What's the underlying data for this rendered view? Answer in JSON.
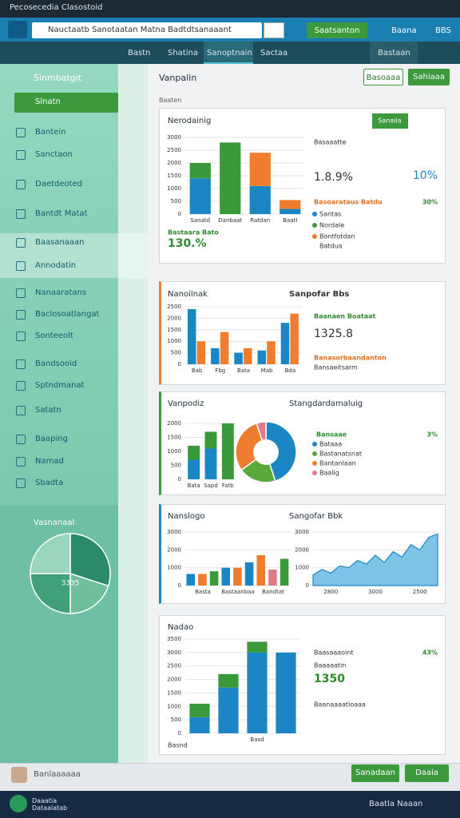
{
  "window_title": "Pecosecedia Clasostoid",
  "toolbar": {
    "search": "Nauctaatb Sanotaatan Matna Badtdtsanaaant",
    "action": "Saatsanton",
    "user": "Baana",
    "badge": "BBS"
  },
  "tabs": [
    "Bastn",
    "Shatina",
    "Sanoptnain",
    "Sactaa"
  ],
  "tab_right": "Bastaan",
  "sidebar": {
    "header": "Sinmbatgit",
    "active": "Slnatn",
    "items": [
      "Bantein",
      "Sanctaon",
      "Daetdeoted",
      "Bantdt Matat",
      "Baasanaaan",
      "Annodatin",
      "Nanaaratans",
      "Baclosoatlangat",
      "Sonteeolt",
      "Bandsooid",
      "Sptndmanat",
      "Satatn",
      "Baaping",
      "Namad",
      "Sbadta"
    ]
  },
  "page": {
    "title": "Vanpalin",
    "button_1": "Basoaaa",
    "button_2": "Sahiaaa",
    "section": "Baaten"
  },
  "panels": [
    {
      "texts": [
        "Sanaiia",
        "Basaaatte",
        "1.8.9%",
        "10%",
        "Basoarataus Batdu",
        "30%",
        "Bastaara Bato",
        "130.%",
        "Batdua"
      ]
    },
    {
      "texts": [
        "Sanpofar Bbs",
        "Baanaen Boataat",
        "1325.8",
        "Banasorbaandanton",
        "Bansaeitsarm"
      ]
    },
    {
      "texts": [
        "3%",
        "Bansaae"
      ]
    },
    {
      "texts": []
    },
    {
      "texts": [
        "Baasaaaoint",
        "43%",
        "Baaaaatin",
        "1350",
        "Baanaaaatioaaa",
        "Basnd"
      ]
    }
  ],
  "chart_data": [
    {
      "type": "bar",
      "title": "Nerodainig",
      "stacked": true,
      "grid": true,
      "categories": [
        "Sanatd",
        "Danbaat",
        "Ratdan",
        "Baatl"
      ],
      "ylim": [
        0,
        3000
      ],
      "yticks": [
        0,
        500,
        1000,
        1500,
        2000,
        2500,
        3000
      ],
      "series": [
        {
          "name": "Santas",
          "color": "#1b86c4",
          "values": [
            1400,
            0,
            1100,
            200
          ]
        },
        {
          "name": "Nordale",
          "color": "#3a9a3a",
          "values": [
            600,
            2800,
            0,
            0
          ]
        },
        {
          "name": "Bontfotdan",
          "color": "#ef7d2d",
          "values": [
            0,
            0,
            1300,
            350
          ]
        }
      ]
    },
    {
      "type": "bar",
      "title": "Nanoilnak",
      "stacked": false,
      "grid": true,
      "categories": [
        "Bab",
        "Fbg",
        "Bata",
        "Mab",
        "Bda"
      ],
      "ylim": [
        0,
        2500
      ],
      "yticks": [
        0,
        500,
        1000,
        1500,
        2000,
        2500
      ],
      "series": [
        {
          "color": "#1b86c4",
          "values": [
            2400,
            700,
            500,
            600,
            1800
          ]
        },
        {
          "color": "#ef7d2d",
          "values": [
            1000,
            1400,
            700,
            1000,
            2200
          ]
        }
      ]
    },
    {
      "type": "bar",
      "title": "Vanpodiz",
      "stacked": true,
      "grid": true,
      "categories": [
        "Bata",
        "Sapd",
        "Fatb"
      ],
      "ylim": [
        0,
        2000
      ],
      "yticks": [
        0,
        500,
        1000,
        1500,
        2000
      ],
      "series": [
        {
          "color": "#1b86c4",
          "values": [
            700,
            1100,
            0
          ]
        },
        {
          "color": "#3a9a3a",
          "values": [
            500,
            600,
            2000
          ]
        }
      ]
    },
    {
      "type": "pie",
      "title": "Stangdardamaluig",
      "donut": true,
      "categories": [
        "Bataaa",
        "Bastanatsnat",
        "Bantanlaan",
        "Baalig"
      ],
      "values": [
        45,
        20,
        30,
        5
      ],
      "colors": [
        "#1b86c4",
        "#5aaa3a",
        "#ef7d2d",
        "#e07a8a"
      ]
    },
    {
      "type": "bar",
      "title": "Nanslogo",
      "stacked": false,
      "grid": true,
      "categories": [
        null,
        "Basta",
        null,
        null,
        "Bastaanbaa",
        null,
        null,
        "Bandtat",
        null
      ],
      "ylim": [
        0,
        3000
      ],
      "yticks": [
        0,
        1000,
        2000,
        3000
      ],
      "series": [
        {
          "colors": [
            "#1b86c4",
            "#ef7d2d",
            "#3a9a3a",
            "#1b86c4",
            "#ef7d2d",
            "#1b86c4",
            "#ef7d2d",
            "#e07a8a",
            "#3a9a3a"
          ],
          "values": [
            650,
            650,
            800,
            1000,
            1000,
            1300,
            1700,
            900,
            1500
          ]
        }
      ]
    },
    {
      "type": "area",
      "title": "Sangofar Bbk",
      "grid": true,
      "color": "#7ec3e8",
      "categories": [
        null,
        null,
        "2800",
        null,
        null,
        null,
        null,
        "3000",
        null,
        null,
        null,
        null,
        "2500",
        null,
        null
      ],
      "ylim": [
        0,
        3000
      ],
      "yticks": [
        0,
        1000,
        2000,
        3000
      ],
      "values": [
        600,
        900,
        700,
        1100,
        1000,
        1400,
        1200,
        1700,
        1300,
        1900,
        1600,
        2300,
        2000,
        2700,
        2900
      ]
    },
    {
      "type": "bar",
      "title": "Nadao",
      "stacked": true,
      "grid": true,
      "categories": [
        null,
        null,
        "Basd",
        null
      ],
      "ylim": [
        0,
        3500
      ],
      "yticks": [
        0,
        500,
        1000,
        1500,
        2000,
        2500,
        3000,
        3500
      ],
      "series": [
        {
          "color": "#1b86c4",
          "values": [
            600,
            1700,
            3000,
            3000
          ]
        },
        {
          "color": "#3a9a3a",
          "values": [
            500,
            500,
            400,
            0
          ]
        }
      ]
    },
    {
      "type": "pie",
      "title": "Vasnanaal",
      "label": "3335",
      "donut": false,
      "values": [
        30,
        20,
        25,
        25
      ],
      "colors": [
        "#2a8a6a",
        "#6fbf9a",
        "#3fa07a",
        "#9ad6bb"
      ]
    }
  ],
  "footer": {
    "user": "Banlaaaaaa",
    "button_1": "Sanadaan",
    "button_2": "Daaia",
    "app": "Daaatia Dataalatab",
    "account": "Baatla Naaan"
  }
}
